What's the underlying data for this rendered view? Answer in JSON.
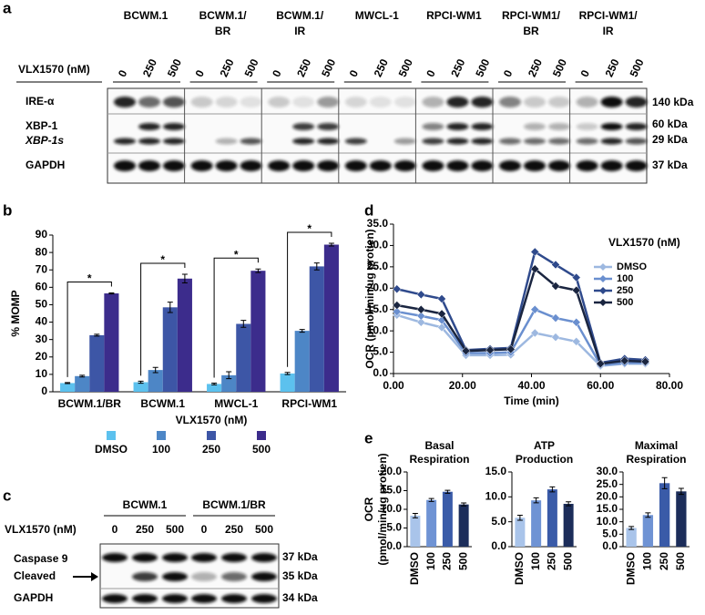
{
  "panel_labels": [
    "a",
    "b",
    "c",
    "d",
    "e"
  ],
  "blot_a": {
    "treatment_label": "VLX1570 (nM)",
    "doses": [
      0,
      250,
      500
    ],
    "cell_lines": [
      {
        "name": [
          "BCWM.1"
        ],
        "color": "#000000"
      },
      {
        "name": [
          "BCWM.1/",
          "BR"
        ],
        "color": "#e0282d"
      },
      {
        "name": [
          "BCWM.1/",
          "IR"
        ],
        "color": "#2e3a8c"
      },
      {
        "name": [
          "MWCL-1"
        ],
        "color": "#000000"
      },
      {
        "name": [
          "RPCI-WM1"
        ],
        "color": "#000000"
      },
      {
        "name": [
          "RPCI-WM1/",
          "BR"
        ],
        "color": "#e0282d"
      },
      {
        "name": [
          "RPCI-WM1/",
          "IR"
        ],
        "color": "#2e3a8c"
      }
    ],
    "proteins": [
      "IRE-α",
      "XBP-1",
      "XBP-1s",
      "GAPDH"
    ],
    "sizes": [
      "140 kDa",
      "60 kDa",
      "29 kDa",
      "37 kDa"
    ]
  },
  "blot_c": {
    "treatment_label": "VLX1570 (nM)",
    "doses": [
      0,
      250,
      500
    ],
    "cell_lines": [
      {
        "name": "BCWM.1",
        "color": "#000000"
      },
      {
        "name": "BCWM.1/BR",
        "color": "#e0282d"
      }
    ],
    "proteins": [
      "Caspase 9",
      "Cleaved",
      "GAPDH"
    ],
    "sizes": [
      "37 kDa",
      "35 kDa",
      "34 kDa"
    ]
  },
  "chart_data": [
    {
      "type": "bar",
      "ylabel": "% MOMP",
      "categories": [
        "BCWM.1/BR",
        "BCWM.1",
        "MWCL-1",
        "RPCI-WM1"
      ],
      "category_colors": [
        "#e0282d",
        "#000000",
        "#000000",
        "#000000"
      ],
      "ylim": [
        0,
        90
      ],
      "yticks": [
        0,
        10,
        20,
        30,
        40,
        50,
        60,
        70,
        80,
        90
      ],
      "legend_title": "VLX1570 (nM)",
      "series": [
        {
          "name": "DMSO",
          "color": "#5cc1ee",
          "values": [
            5,
            5.5,
            4.5,
            10.5
          ],
          "errors": [
            0.3,
            0.6,
            0.5,
            0.6
          ]
        },
        {
          "name": "100",
          "color": "#4d86c6",
          "values": [
            9,
            12.5,
            9.5,
            35
          ],
          "errors": [
            0.5,
            1.5,
            2,
            0.8
          ]
        },
        {
          "name": "250",
          "color": "#3d56a6",
          "values": [
            32.5,
            48.5,
            39,
            72
          ],
          "errors": [
            0.5,
            3,
            2,
            2
          ]
        },
        {
          "name": "500",
          "color": "#3c2c8c",
          "values": [
            56.5,
            65,
            69.5,
            84.5
          ],
          "errors": [
            0.3,
            2.5,
            1,
            0.8
          ]
        }
      ],
      "significance": [
        "*",
        "*",
        "*",
        "*"
      ]
    },
    {
      "type": "line",
      "xlabel": "Time (min)",
      "ylabel": "OCR (pmol/min/ug protien)",
      "x": [
        1,
        8,
        14,
        21,
        28,
        34,
        41,
        47,
        53,
        60,
        67,
        73
      ],
      "xlim": [
        0,
        80
      ],
      "xticks": [
        {
          "value": 0,
          "label": "0.00"
        },
        {
          "value": 20,
          "label": "20.00"
        },
        {
          "value": 40,
          "label": "40.00"
        },
        {
          "value": 60,
          "label": "60.00"
        },
        {
          "value": 80,
          "label": "80.00"
        }
      ],
      "ylim": [
        0,
        35
      ],
      "yticks": [
        {
          "value": 0,
          "label": "0.0"
        },
        {
          "value": 5,
          "label": "5.0"
        },
        {
          "value": 10,
          "label": "10.0"
        },
        {
          "value": 15,
          "label": "15.0"
        },
        {
          "value": 20,
          "label": "20.0"
        },
        {
          "value": 25,
          "label": "25.0"
        },
        {
          "value": 30,
          "label": "30.0"
        },
        {
          "value": 35,
          "label": "35.0"
        }
      ],
      "legend_title": "VLX1570 (nM)",
      "series": [
        {
          "name": "DMSO",
          "color": "#9db8e0",
          "values": [
            13.7,
            12,
            10.8,
            4.3,
            4.3,
            4.4,
            9.5,
            8.5,
            7.5,
            1.8,
            2.3,
            2.3
          ]
        },
        {
          "name": "100",
          "color": "#6a8fcf",
          "values": [
            14.5,
            13.5,
            12.5,
            4.8,
            4.8,
            5,
            15,
            13,
            12,
            2,
            2.5,
            2.5
          ]
        },
        {
          "name": "250",
          "color": "#2f4a8c",
          "values": [
            19.8,
            18.5,
            17.5,
            5.5,
            5.8,
            6,
            28.5,
            25.5,
            22.5,
            2.5,
            3.5,
            3.2
          ]
        },
        {
          "name": "500",
          "color": "#1a2540",
          "values": [
            16,
            15,
            14,
            5.3,
            5.5,
            5.7,
            24.5,
            20.5,
            19.5,
            2.3,
            3,
            2.8
          ]
        }
      ]
    },
    {
      "type": "bar",
      "title": [
        "Basal",
        "Respiration"
      ],
      "ylabel": [
        "OCR",
        "(pmol/min/ug protien)"
      ],
      "categories": [
        "DMSO",
        "100",
        "250",
        "500"
      ],
      "colors": [
        "#a9c4ea",
        "#6f93d4",
        "#3a5ba8",
        "#1c2d5a"
      ],
      "values": [
        8.3,
        12.5,
        14.7,
        11.3
      ],
      "errors": [
        0.6,
        0.4,
        0.4,
        0.4
      ],
      "ylim": [
        0,
        20
      ],
      "yticks": [
        {
          "value": 0,
          "label": "0.0"
        },
        {
          "value": 5,
          "label": "5.0"
        },
        {
          "value": 10,
          "label": "10.0"
        },
        {
          "value": 15,
          "label": "15.0"
        },
        {
          "value": 20,
          "label": "20.0"
        }
      ]
    },
    {
      "type": "bar",
      "title": [
        "ATP",
        "Production"
      ],
      "categories": [
        "DMSO",
        "100",
        "250",
        "500"
      ],
      "colors": [
        "#a9c4ea",
        "#6f93d4",
        "#3a5ba8",
        "#1c2d5a"
      ],
      "values": [
        5.8,
        9.3,
        11.5,
        8.6
      ],
      "errors": [
        0.5,
        0.5,
        0.5,
        0.4
      ],
      "ylim": [
        0,
        15
      ],
      "yticks": [
        {
          "value": 0,
          "label": "0.0"
        },
        {
          "value": 5,
          "label": "5.0"
        },
        {
          "value": 10,
          "label": "10.0"
        },
        {
          "value": 15,
          "label": "15.0"
        }
      ]
    },
    {
      "type": "bar",
      "title": [
        "Maximal",
        "Respiration"
      ],
      "categories": [
        "DMSO",
        "100",
        "250",
        "500"
      ],
      "colors": [
        "#a9c4ea",
        "#6f93d4",
        "#3a5ba8",
        "#1c2d5a"
      ],
      "values": [
        7.5,
        12.7,
        25.5,
        22.2
      ],
      "errors": [
        0.6,
        0.9,
        2.2,
        1.2
      ],
      "ylim": [
        0,
        30
      ],
      "yticks": [
        {
          "value": 0,
          "label": "0.0"
        },
        {
          "value": 5,
          "label": "5.0"
        },
        {
          "value": 10,
          "label": "10.0"
        },
        {
          "value": 15,
          "label": "15.0"
        },
        {
          "value": 20,
          "label": "20.0"
        },
        {
          "value": 25,
          "label": "25.0"
        },
        {
          "value": 30,
          "label": "30.0"
        }
      ]
    }
  ]
}
